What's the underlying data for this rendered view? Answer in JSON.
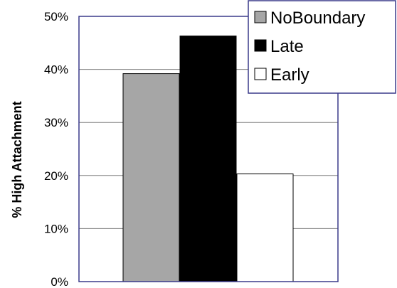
{
  "chart_data": {
    "type": "bar",
    "title": "",
    "xlabel": "",
    "ylabel": "% High Attachment",
    "ylim": [
      0,
      50
    ],
    "yticks": [
      "0%",
      "10%",
      "20%",
      "30%",
      "40%",
      "50%"
    ],
    "grid": true,
    "legend_position": "top-right",
    "series": [
      {
        "name": "NoBoundary",
        "value": 39.2,
        "color": "#a6a6a6"
      },
      {
        "name": "Late",
        "value": 46.3,
        "color": "#000000"
      },
      {
        "name": "Early",
        "value": 20.3,
        "color": "#ffffff"
      }
    ]
  },
  "colors": {
    "plot_border": "#3a3a8a",
    "grid": "#7f7f7f",
    "bar_outline": "#000000"
  }
}
